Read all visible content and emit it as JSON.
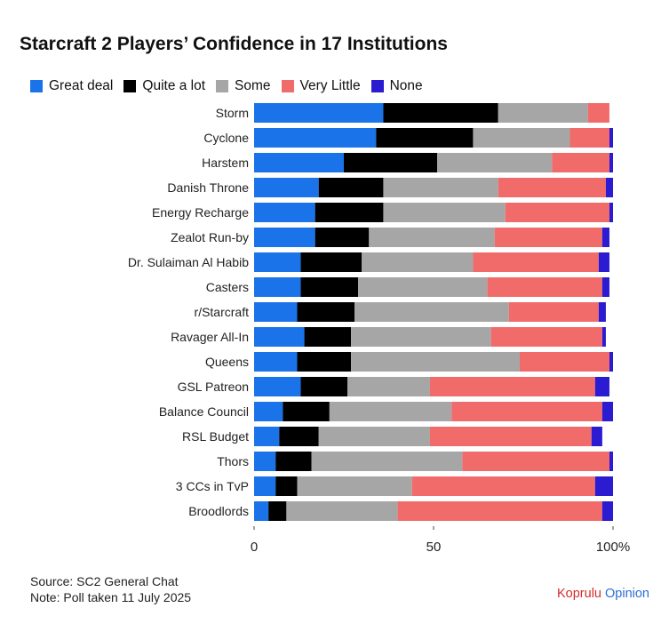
{
  "chart_data": {
    "type": "bar",
    "orientation": "horizontal",
    "stacked": true,
    "title": "Starcraft 2 Players’ Confidence in 17 Institutions",
    "categories": [
      "Storm",
      "Cyclone",
      "Harstem",
      "Danish Throne",
      "Energy Recharge",
      "Zealot Run-by",
      "Dr. Sulaiman Al Habib",
      "Casters",
      "r/Starcraft",
      "Ravager All-In",
      "Queens",
      "GSL Patreon",
      "Balance Council",
      "RSL Budget",
      "Thors",
      "3 CCs in TvP",
      "Broodlords"
    ],
    "series": [
      {
        "name": "Great deal",
        "color": "#1a73e8",
        "values": [
          36,
          34,
          25,
          18,
          17,
          17,
          13,
          13,
          12,
          14,
          12,
          13,
          8,
          7,
          6,
          6,
          4
        ]
      },
      {
        "name": "Quite a lot",
        "color": "#000000",
        "values": [
          32,
          27,
          26,
          18,
          19,
          15,
          17,
          16,
          16,
          13,
          15,
          13,
          13,
          11,
          10,
          6,
          5
        ]
      },
      {
        "name": "Some",
        "color": "#a6a6a6",
        "values": [
          25,
          27,
          32,
          32,
          34,
          35,
          31,
          36,
          43,
          39,
          47,
          23,
          34,
          31,
          42,
          32,
          31
        ]
      },
      {
        "name": "Very Little",
        "color": "#f26b6b",
        "values": [
          6,
          11,
          16,
          30,
          29,
          30,
          35,
          32,
          25,
          31,
          25,
          46,
          42,
          45,
          41,
          51,
          57
        ]
      },
      {
        "name": "None",
        "color": "#2b1bd1",
        "values": [
          0,
          1,
          1,
          2,
          1,
          2,
          3,
          2,
          2,
          1,
          1,
          4,
          3,
          3,
          1,
          5,
          3
        ]
      }
    ],
    "xlim": [
      0,
      100
    ],
    "x_ticks": [
      "0",
      "50",
      "100%"
    ],
    "grid": false,
    "legend_position": "top"
  },
  "footer": {
    "source": "Source: SC2 General Chat",
    "note": "Note: Poll taken 11 July 2025"
  },
  "brand": {
    "part1": "Koprulu",
    "part2": "Opinion"
  }
}
